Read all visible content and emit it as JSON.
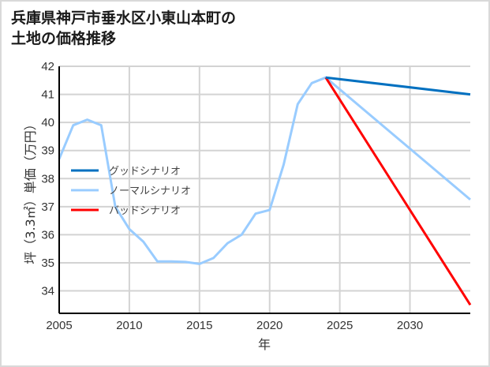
{
  "title_line1": "兵庫県神戸市垂水区小東山本町の",
  "title_line2": "土地の価格推移",
  "colors": {
    "good": "#0070c0",
    "normal": "#99ccff",
    "bad": "#ff0000",
    "grid": "#d3d3d3",
    "axis": "#000000"
  },
  "chart_data": {
    "type": "line",
    "title": "兵庫県神戸市垂水区小東山本町の土地の価格推移",
    "xlabel": "年",
    "ylabel": "坪（3.3㎡）単価（万円）",
    "xlim": [
      2005,
      2034.3
    ],
    "ylim": [
      33.2,
      42
    ],
    "x_ticks": [
      2005,
      2010,
      2015,
      2020,
      2025,
      2030
    ],
    "y_ticks": [
      34,
      35,
      36,
      37,
      38,
      39,
      40,
      41,
      42
    ],
    "grid": true,
    "legend_position": "left-middle",
    "series": [
      {
        "name": "グッドシナリオ",
        "color": "#0070c0",
        "x": [
          2024,
          2034.3
        ],
        "values": [
          41.6,
          41.0
        ]
      },
      {
        "name": "ノーマルシナリオ",
        "color": "#99ccff",
        "x": [
          2005,
          2006,
          2007,
          2008,
          2009,
          2010,
          2011,
          2012,
          2013,
          2014,
          2015,
          2016,
          2017,
          2018,
          2019,
          2020,
          2021,
          2022,
          2023,
          2024,
          2034.3
        ],
        "values": [
          38.7,
          39.9,
          40.1,
          39.9,
          37.0,
          36.2,
          35.75,
          35.05,
          35.05,
          35.03,
          34.96,
          35.17,
          35.7,
          36.0,
          36.75,
          36.88,
          38.5,
          40.65,
          41.4,
          41.6,
          37.25
        ]
      },
      {
        "name": "バッドシナリオ",
        "color": "#ff0000",
        "x": [
          2024,
          2034.3
        ],
        "values": [
          41.6,
          33.5
        ]
      }
    ]
  }
}
